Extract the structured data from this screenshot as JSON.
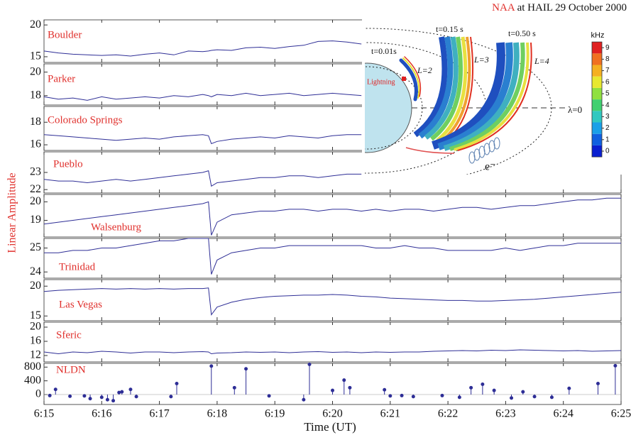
{
  "title_highlight": "NAA",
  "title": "at HAIL 29 October 2000",
  "y_label": "Linear Amplitude",
  "x_label": "Time (UT)",
  "x": [
    15,
    15.25,
    15.5,
    15.75,
    16,
    16.25,
    16.5,
    16.75,
    17,
    17.25,
    17.5,
    17.75,
    17.85,
    17.9,
    18,
    18.25,
    18.5,
    18.75,
    19,
    19.25,
    19.5,
    19.75,
    20,
    20.25,
    20.5,
    20.75,
    21,
    21.25,
    21.5,
    21.75,
    22,
    22.25,
    22.5,
    22.75,
    23,
    23.25,
    23.5,
    23.75,
    24,
    24.25,
    24.5,
    24.75,
    25
  ],
  "xlim": [
    15,
    25
  ],
  "xticks": [
    {
      "value": 15,
      "label": "6:15"
    },
    {
      "value": 16,
      "label": "6:16"
    },
    {
      "value": 17,
      "label": "6:17"
    },
    {
      "value": 18,
      "label": "6:18"
    },
    {
      "value": 19,
      "label": "6:19"
    },
    {
      "value": 20,
      "label": "6:20"
    },
    {
      "value": 21,
      "label": "6:21"
    },
    {
      "value": 22,
      "label": "6:22"
    },
    {
      "value": 23,
      "label": "6:23"
    },
    {
      "value": 24,
      "label": "6:24"
    },
    {
      "value": 25,
      "label": "6:25"
    }
  ],
  "chart_data": [
    {
      "type": "line",
      "label": "Boulder",
      "color": "#2e2e96",
      "ylim": [
        14.1,
        20.8
      ],
      "yticks": [
        15,
        20
      ],
      "values": [
        15.9,
        15.6,
        15.4,
        15.3,
        15.2,
        15.3,
        15.1,
        15.4,
        15.6,
        15.3,
        15.9,
        15.8,
        15.9,
        16.0,
        16.1,
        16.0,
        16.4,
        16.5,
        16.3,
        16.6,
        16.8,
        17.4,
        17.5,
        17.3,
        17.0,
        null,
        null,
        null,
        null,
        null,
        null,
        null,
        null,
        null,
        null,
        null,
        null,
        null,
        null,
        null,
        null,
        null,
        null
      ]
    },
    {
      "type": "line",
      "label": "Parker",
      "color": "#2e2e96",
      "ylim": [
        17.2,
        20.7
      ],
      "yticks": [
        18,
        20
      ],
      "values": [
        17.9,
        17.7,
        17.8,
        17.6,
        17.9,
        17.7,
        17.8,
        17.9,
        17.8,
        18.0,
        17.9,
        18.1,
        18.0,
        17.9,
        18.1,
        18.0,
        18.2,
        18.0,
        18.1,
        18.2,
        18.0,
        18.1,
        18.2,
        18.1,
        18.0,
        null,
        null,
        null,
        null,
        null,
        null,
        null,
        null,
        null,
        null,
        null,
        null,
        null,
        null,
        null,
        null,
        null,
        null
      ]
    },
    {
      "type": "line",
      "label": "Colorado Springs",
      "color": "#2e2e96",
      "ylim": [
        15.5,
        19.4
      ],
      "yticks": [
        16,
        18
      ],
      "values": [
        16.9,
        16.8,
        16.7,
        16.6,
        16.5,
        16.4,
        16.5,
        16.6,
        16.5,
        16.7,
        16.8,
        16.9,
        16.8,
        16.1,
        16.3,
        16.5,
        16.6,
        16.7,
        16.6,
        16.8,
        16.7,
        16.6,
        16.8,
        16.9,
        16.9,
        null,
        null,
        null,
        null,
        null,
        null,
        null,
        null,
        null,
        null,
        null,
        null,
        null,
        null,
        null,
        null,
        null,
        null
      ]
    },
    {
      "type": "line",
      "label": "Pueblo",
      "color": "#2e2e96",
      "ylim": [
        21.8,
        24.2
      ],
      "yticks": [
        22,
        23
      ],
      "values": [
        22.6,
        22.5,
        22.5,
        22.4,
        22.5,
        22.6,
        22.5,
        22.6,
        22.7,
        22.8,
        22.9,
        23.0,
        23.1,
        22.2,
        22.4,
        22.5,
        22.6,
        22.7,
        22.7,
        22.8,
        22.8,
        22.7,
        22.8,
        22.9,
        22.9,
        null,
        null,
        null,
        null,
        null,
        null,
        null,
        null,
        null,
        null,
        null,
        null,
        null,
        null,
        null,
        null,
        null,
        null
      ]
    },
    {
      "type": "line",
      "label": "Walsenburg",
      "color": "#2e2e96",
      "ylim": [
        18.1,
        20.4
      ],
      "yticks": [
        19,
        20
      ],
      "values": [
        18.8,
        18.9,
        19.0,
        19.1,
        19.2,
        19.3,
        19.4,
        19.5,
        19.6,
        19.7,
        19.8,
        19.9,
        20.0,
        18.2,
        18.9,
        19.3,
        19.4,
        19.5,
        19.5,
        19.6,
        19.6,
        19.5,
        19.6,
        19.6,
        19.5,
        19.6,
        19.5,
        19.6,
        19.6,
        19.5,
        19.6,
        19.7,
        19.7,
        19.6,
        19.7,
        19.8,
        19.8,
        19.9,
        20.0,
        20.1,
        20.1,
        20.2,
        20.2
      ]
    },
    {
      "type": "line",
      "label": "Trinidad",
      "color": "#2e2e96",
      "ylim": [
        23.74,
        25.4
      ],
      "yticks": [
        24,
        25
      ],
      "values": [
        24.8,
        24.8,
        24.9,
        24.9,
        25.0,
        25.0,
        25.1,
        25.2,
        25.3,
        25.3,
        25.4,
        25.4,
        25.4,
        23.9,
        24.5,
        24.8,
        24.9,
        25.0,
        25.0,
        25.1,
        25.1,
        25.1,
        25.1,
        25.1,
        25.1,
        25.0,
        25.0,
        25.1,
        25.0,
        25.0,
        24.9,
        24.9,
        24.9,
        24.9,
        25.0,
        24.9,
        25.0,
        25.1,
        25.1,
        25.2,
        25.2,
        25.2,
        25.2
      ]
    },
    {
      "type": "line",
      "label": "Las Vegas",
      "color": "#2e2e96",
      "ylim": [
        14.2,
        21.1
      ],
      "yticks": [
        15,
        20
      ],
      "values": [
        19.1,
        19.3,
        19.4,
        19.5,
        19.6,
        19.5,
        19.6,
        19.5,
        19.6,
        19.5,
        19.6,
        19.6,
        19.7,
        15.2,
        16.5,
        17.3,
        17.8,
        18.1,
        18.3,
        18.4,
        18.5,
        18.5,
        18.6,
        18.5,
        18.3,
        18.2,
        18.0,
        17.9,
        17.8,
        17.7,
        17.6,
        17.6,
        17.5,
        17.5,
        17.6,
        17.7,
        17.8,
        18.0,
        18.2,
        18.4,
        18.6,
        18.8,
        19.0
      ]
    },
    {
      "type": "line",
      "label": "Sferic",
      "color": "#2e2e96",
      "ylim": [
        10.2,
        21.4
      ],
      "yticks": [
        12,
        16,
        20
      ],
      "values": [
        13,
        12.5,
        13,
        12.8,
        13.2,
        13,
        12.7,
        13,
        13,
        12.8,
        13,
        13.1,
        13,
        12.5,
        12.7,
        12.8,
        13,
        12.9,
        13,
        12.8,
        13,
        13.1,
        12.9,
        13,
        12.8,
        13,
        12.9,
        13,
        13,
        13.2,
        13.3,
        13.4,
        13.3,
        13.5,
        13.4,
        13.6,
        13.5,
        13.4,
        13.3,
        13.4,
        13.2,
        13.3,
        13.4
      ]
    },
    {
      "type": "stem",
      "label": "NLDN",
      "color": "#2e2e96",
      "ylim": [
        -290,
        910
      ],
      "yticks": [
        0,
        400,
        800
      ],
      "x": [
        15.1,
        15.2,
        15.45,
        15.7,
        15.8,
        16.0,
        16.1,
        16.2,
        16.3,
        16.35,
        16.5,
        16.6,
        17.2,
        17.3,
        17.9,
        18.3,
        18.5,
        18.9,
        19.5,
        19.6,
        20.0,
        20.2,
        20.3,
        20.9,
        21.0,
        21.2,
        21.4,
        21.9,
        22.2,
        22.4,
        22.6,
        22.8,
        23.1,
        23.3,
        23.5,
        23.8,
        24.1,
        24.6,
        24.9
      ],
      "values": [
        -30,
        150,
        -50,
        -40,
        -120,
        -80,
        -150,
        -180,
        60,
        80,
        150,
        -60,
        -60,
        320,
        830,
        200,
        750,
        -40,
        -150,
        880,
        120,
        420,
        200,
        140,
        -40,
        -30,
        -60,
        -30,
        -80,
        200,
        300,
        120,
        -100,
        80,
        -60,
        -80,
        180,
        320,
        840
      ]
    }
  ],
  "inset": {
    "t1": "t=0.01s",
    "t2": "t=0.15 s",
    "t3": "t=0.50 s",
    "l2": "L=2",
    "l3": "L=3",
    "l4": "L=4",
    "lightning": "Lightning",
    "equator": "λ=0",
    "electron": "e⁻",
    "colorbar": {
      "label": "kHz",
      "ticks": [
        0,
        1,
        2,
        3,
        4,
        5,
        6,
        7,
        8,
        9
      ],
      "colors": [
        "#0a1fd0",
        "#1060e0",
        "#1aa0e8",
        "#30c8c0",
        "#40d070",
        "#90e040",
        "#e8e830",
        "#f5b020",
        "#f07020",
        "#e02020"
      ]
    }
  }
}
